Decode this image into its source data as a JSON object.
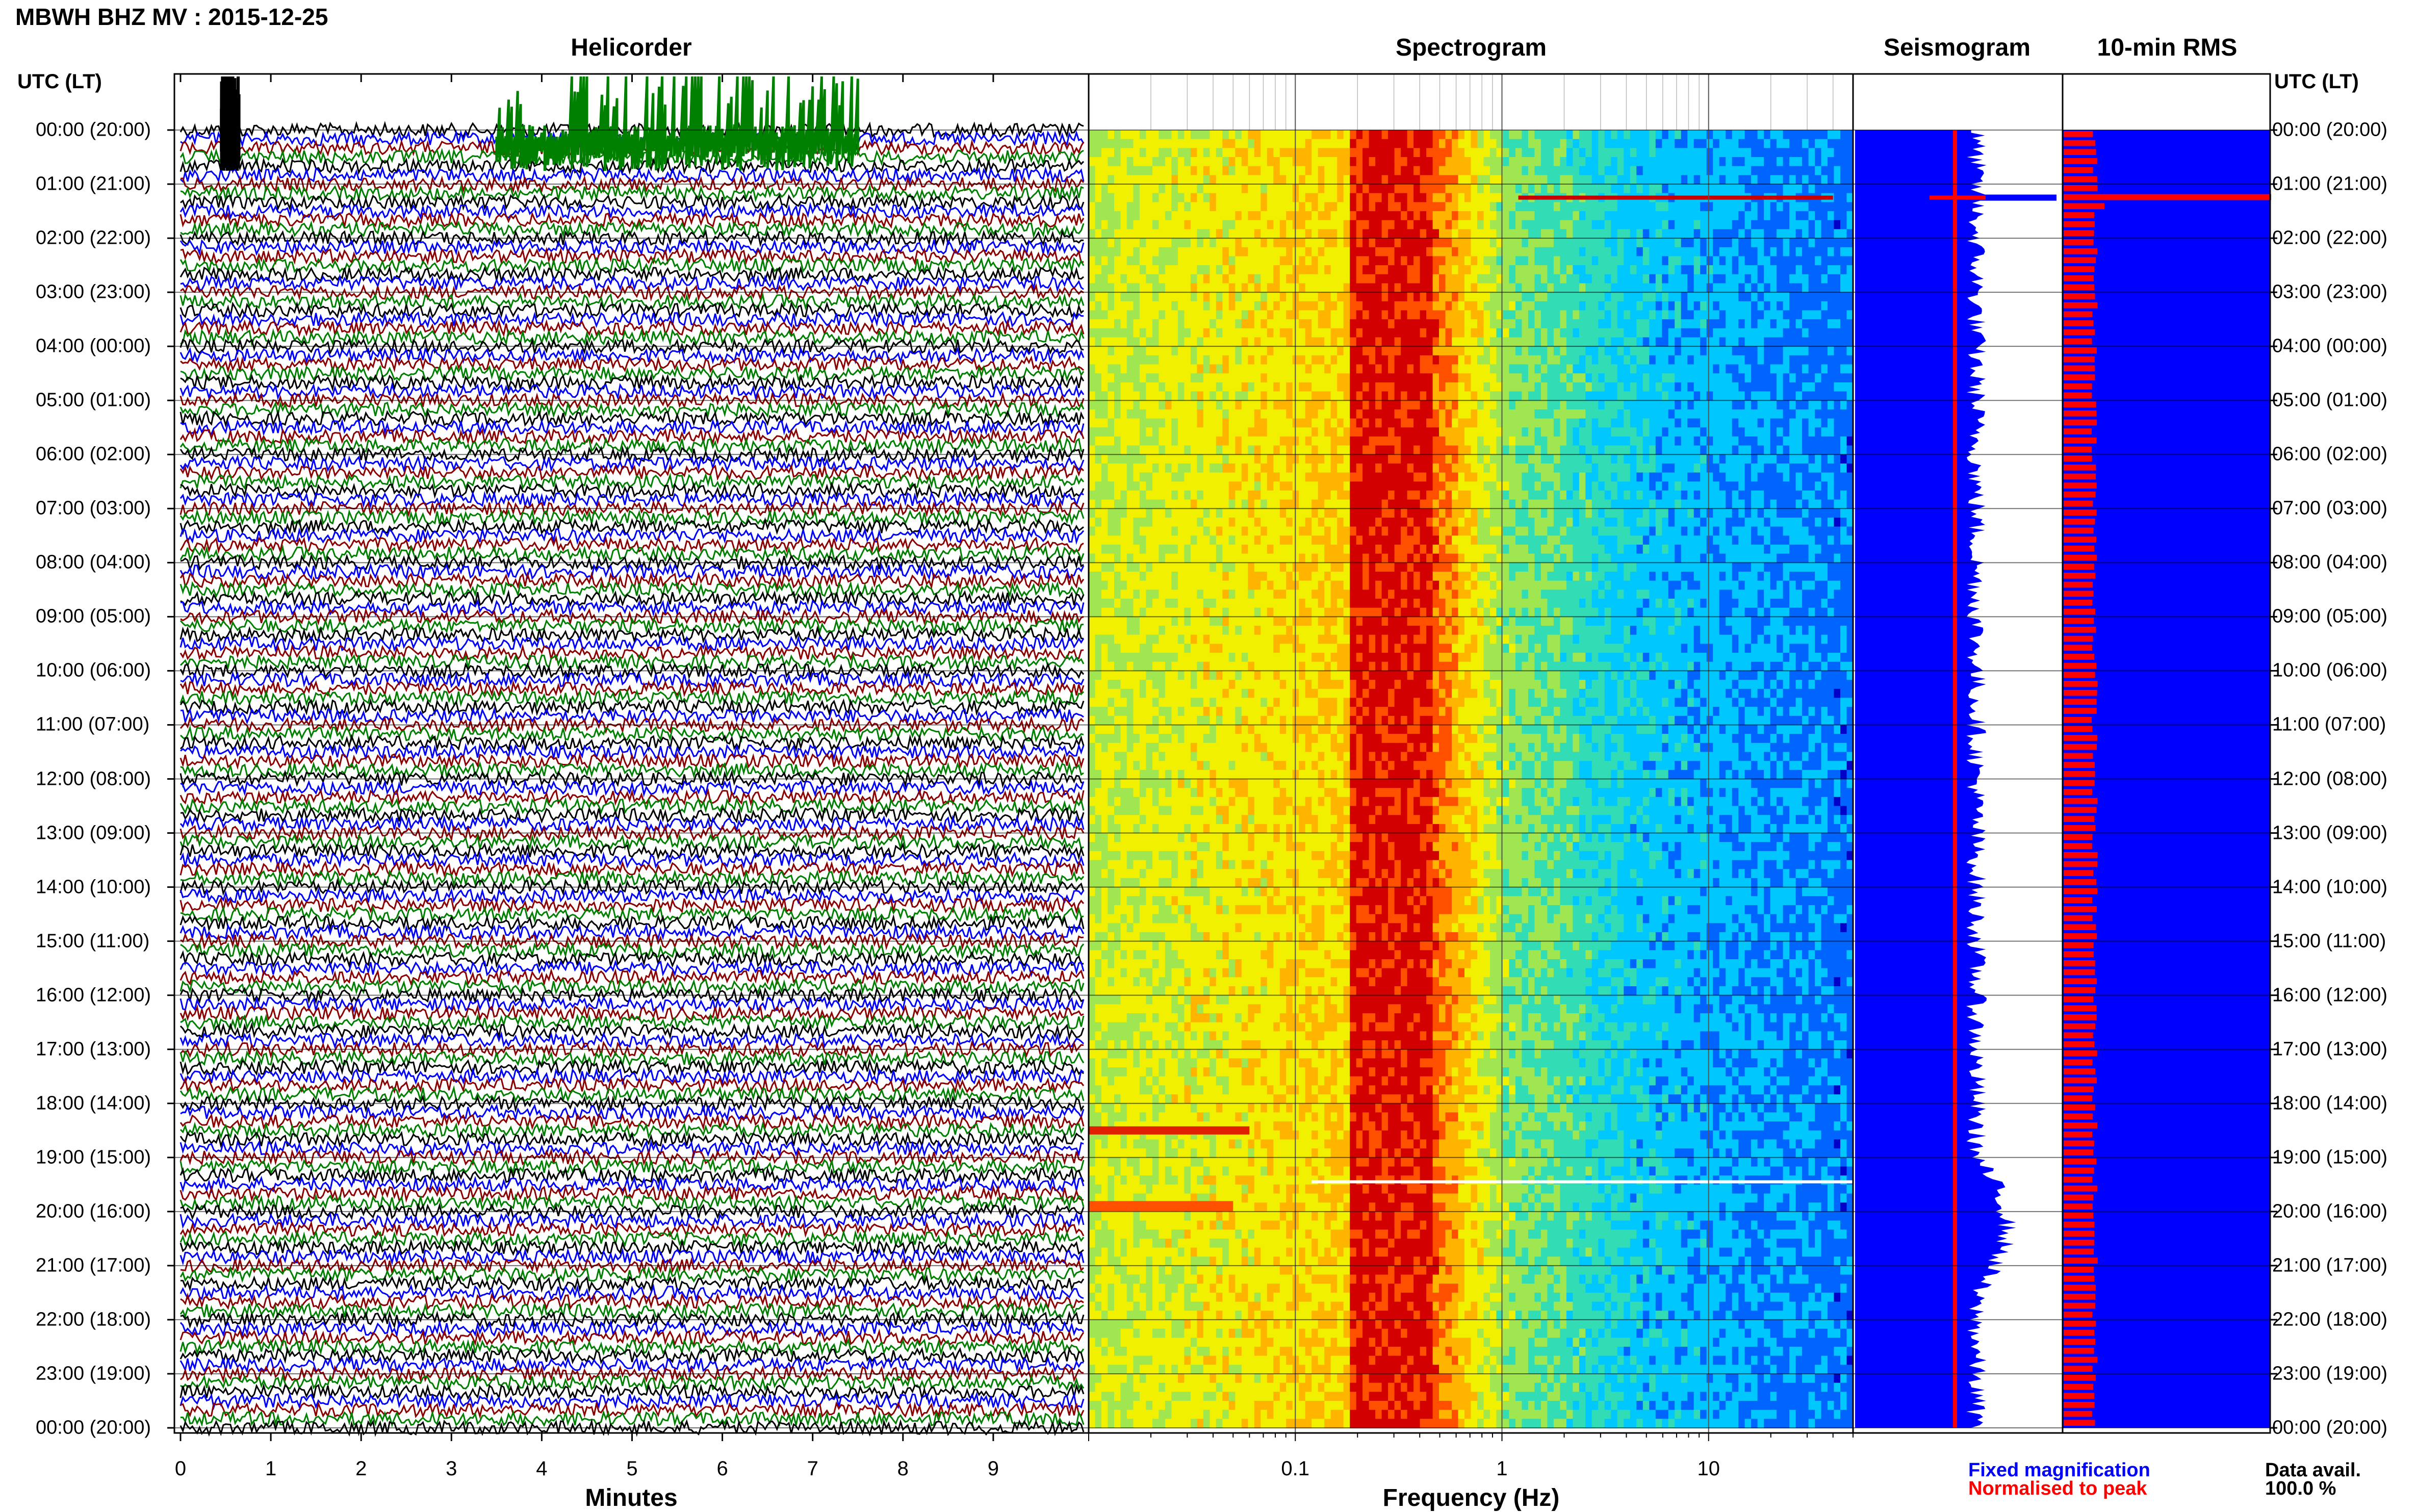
{
  "title": "MBWH BHZ MV : 2015-12-25",
  "panels": {
    "helicorder": "Helicorder",
    "spectrogram": "Spectrogram",
    "seismogram": "Seismogram",
    "rms": "10-min RMS"
  },
  "time_axis_label": "UTC (LT)",
  "time_labels": [
    "00:00 (20:00)",
    "01:00 (21:00)",
    "02:00 (22:00)",
    "03:00 (23:00)",
    "04:00 (00:00)",
    "05:00 (01:00)",
    "06:00 (02:00)",
    "07:00 (03:00)",
    "08:00 (04:00)",
    "09:00 (05:00)",
    "10:00 (06:00)",
    "11:00 (07:00)",
    "12:00 (08:00)",
    "13:00 (09:00)",
    "14:00 (10:00)",
    "15:00 (11:00)",
    "16:00 (12:00)",
    "17:00 (13:00)",
    "18:00 (14:00)",
    "19:00 (15:00)",
    "20:00 (16:00)",
    "21:00 (17:00)",
    "22:00 (18:00)",
    "23:00 (19:00)",
    "00:00 (20:00)"
  ],
  "legend": {
    "fixed": "Fixed magnification",
    "normalised": "Normalised to peak",
    "fixed_color": "#0000ff",
    "normalised_color": "#ff0000"
  },
  "data_avail": {
    "label": "Data avail.",
    "value": "100.0 %"
  },
  "chart_data": [
    {
      "type": "line",
      "name": "helicorder",
      "xlabel": "Minutes",
      "x_ticks": [
        0,
        1,
        2,
        3,
        4,
        5,
        6,
        7,
        8,
        9
      ],
      "xlim": [
        0,
        10
      ],
      "rows_per_hour": 6,
      "trace_colors": [
        "#000000",
        "#0000ff",
        "#8b0000",
        "#008000"
      ],
      "events": [
        {
          "hour": 0,
          "minute_start": 0.45,
          "minute_end": 0.65,
          "color": "#000000"
        },
        {
          "hour": 0,
          "minute_start": 3.5,
          "minute_end": 7.5,
          "color": "#008000"
        }
      ]
    },
    {
      "type": "heatmap",
      "name": "spectrogram",
      "xlabel": "Frequency (Hz)",
      "x_scale": "log",
      "xlim": [
        0.01,
        50
      ],
      "x_ticks": [
        0.1,
        1,
        10
      ],
      "x_tick_labels": [
        "0.1",
        "1",
        "10"
      ],
      "peak_band_hz": [
        0.18,
        0.45
      ],
      "colormap": [
        "#0000c8",
        "#0064ff",
        "#00c8ff",
        "#32dcb4",
        "#a0e650",
        "#f0f000",
        "#ffb400",
        "#ff5000",
        "#d20000"
      ]
    },
    {
      "type": "area",
      "name": "seismogram",
      "series": [
        {
          "name": "Fixed magnification",
          "color": "#0000ff"
        },
        {
          "name": "Normalised to peak",
          "color": "#ff0000"
        }
      ]
    },
    {
      "type": "bar",
      "name": "rms",
      "series": [
        {
          "name": "Fixed magnification",
          "color": "#0000ff"
        },
        {
          "name": "Normalised to peak",
          "color": "#ff0000"
        }
      ]
    }
  ]
}
